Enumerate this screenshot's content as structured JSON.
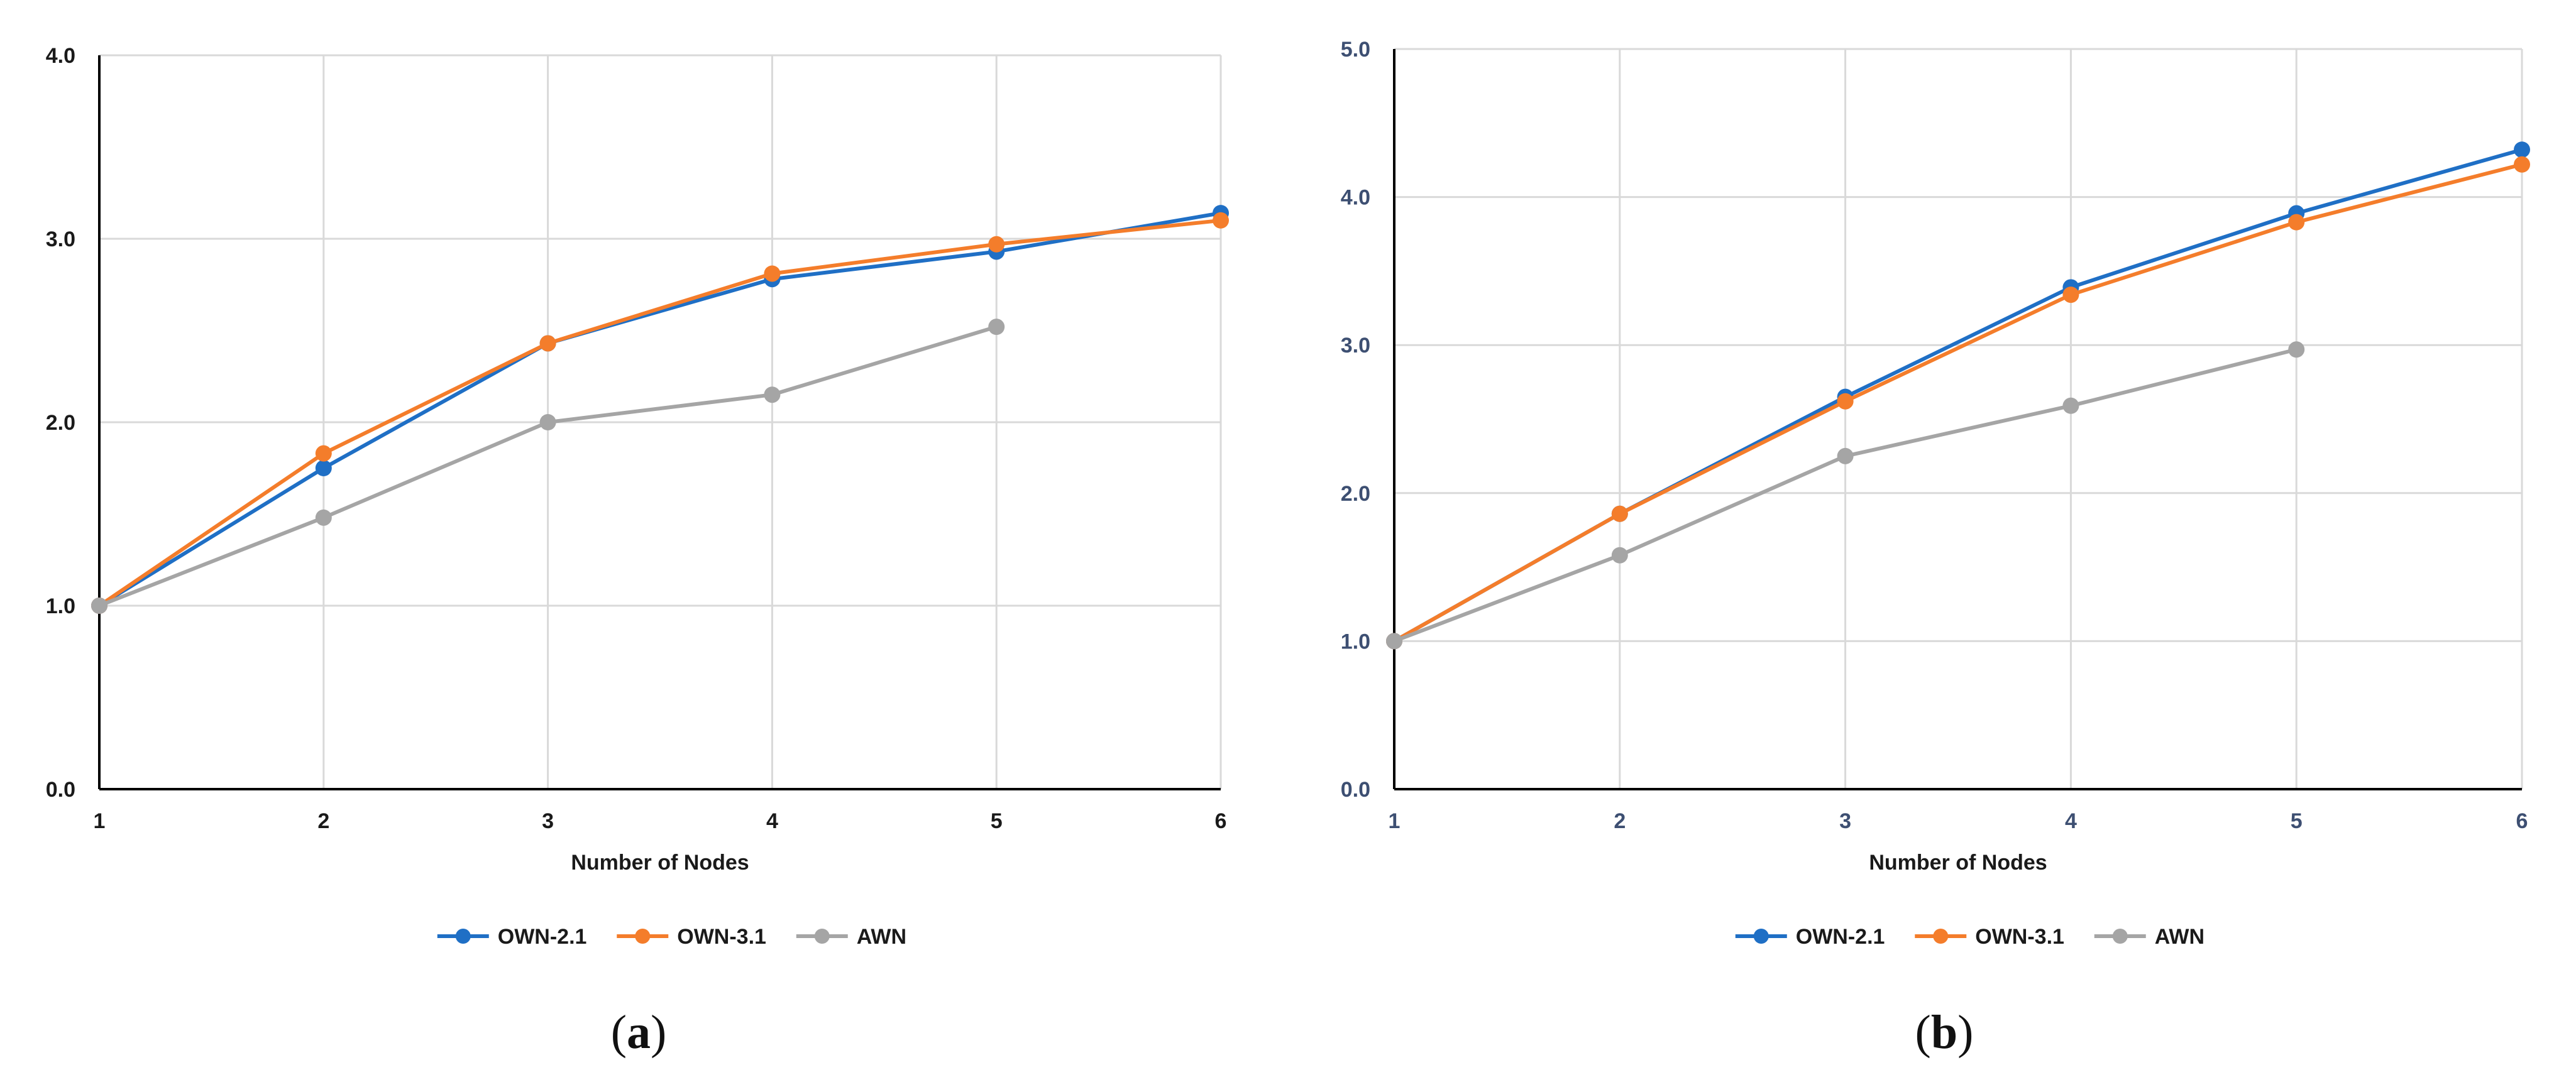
{
  "figure": {
    "panels": [
      {
        "label_open": "(",
        "label": "a",
        "label_close": ")"
      },
      {
        "label_open": "(",
        "label": "b",
        "label_close": ")"
      }
    ]
  },
  "chart_data": [
    {
      "type": "line",
      "x": [
        1,
        2,
        3,
        4,
        5,
        6
      ],
      "xlabel": "Number of Nodes",
      "ylabel": "",
      "xticks": [
        "1",
        "2",
        "3",
        "4",
        "5",
        "6"
      ],
      "yticks": [
        "0.0",
        "1.0",
        "2.0",
        "3.0",
        "4.0"
      ],
      "xlim": [
        1,
        6
      ],
      "ylim": [
        0,
        4
      ],
      "grid": true,
      "legend": "bottom",
      "series": [
        {
          "name": "OWN-2.1",
          "color": "#1f6fc5",
          "values": [
            1.0,
            1.75,
            2.43,
            2.78,
            2.93,
            3.14
          ]
        },
        {
          "name": "OWN-3.1",
          "color": "#f47d2b",
          "values": [
            1.0,
            1.83,
            2.43,
            2.81,
            2.97,
            3.1
          ]
        },
        {
          "name": "AWN",
          "color": "#a5a5a5",
          "values": [
            1.0,
            1.48,
            2.0,
            2.15,
            2.52,
            null
          ]
        }
      ]
    },
    {
      "type": "line",
      "x": [
        1,
        2,
        3,
        4,
        5,
        6
      ],
      "xlabel": "Number of Nodes",
      "ylabel": "",
      "xticks": [
        "1",
        "2",
        "3",
        "4",
        "5",
        "6"
      ],
      "yticks": [
        "0.0",
        "1.0",
        "2.0",
        "3.0",
        "4.0",
        "5.0"
      ],
      "xlim": [
        1,
        6
      ],
      "ylim": [
        0,
        5
      ],
      "grid": true,
      "legend": "bottom",
      "series": [
        {
          "name": "OWN-2.1",
          "color": "#1f6fc5",
          "values": [
            1.0,
            1.86,
            2.65,
            3.39,
            3.89,
            4.32
          ]
        },
        {
          "name": "OWN-3.1",
          "color": "#f47d2b",
          "values": [
            1.0,
            1.86,
            2.62,
            3.34,
            3.83,
            4.22
          ]
        },
        {
          "name": "AWN",
          "color": "#a5a5a5",
          "values": [
            1.0,
            1.58,
            2.25,
            2.59,
            2.97,
            null
          ]
        }
      ]
    }
  ]
}
